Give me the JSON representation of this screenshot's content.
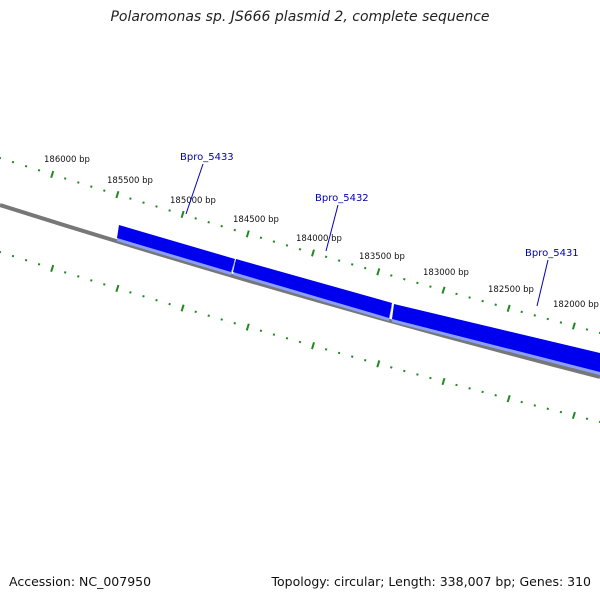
{
  "title": "Polaromonas sp. JS666 plasmid 2, complete sequence",
  "colors": {
    "gene_fill": "#0000ee",
    "gene_shadow": "#8aa0ff",
    "backbone": "#777777",
    "ticks": "#1f8a1f",
    "gene_label": "#0000b3"
  },
  "scale_ticks": [
    {
      "label": "186000 bp"
    },
    {
      "label": "185500 bp"
    },
    {
      "label": "185000 bp"
    },
    {
      "label": "184500 bp"
    },
    {
      "label": "184000 bp"
    },
    {
      "label": "183500 bp"
    },
    {
      "label": "183000 bp"
    },
    {
      "label": "182500 bp"
    },
    {
      "label": "182000 bp"
    }
  ],
  "genes": [
    {
      "id": "Bpro_5433"
    },
    {
      "id": "Bpro_5432"
    },
    {
      "id": "Bpro_5431"
    }
  ],
  "footer": {
    "accession": "Accession: NC_007950",
    "summary": "Topology: circular; Length: 338,007 bp; Genes: 310"
  }
}
